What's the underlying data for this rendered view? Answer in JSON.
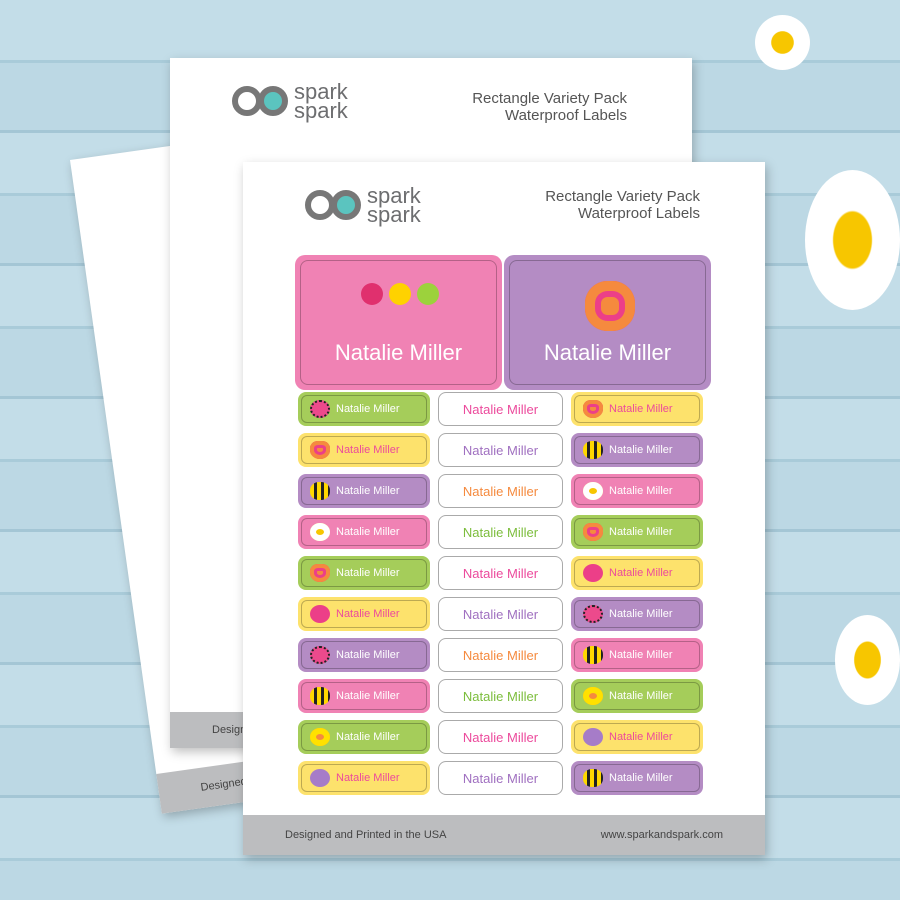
{
  "brand": {
    "line1": "spark",
    "amp": "&",
    "line2": "spark"
  },
  "sheet_title": {
    "line1": "Rectangle Variety Pack",
    "line2": "Waterproof Labels"
  },
  "footer": {
    "left": "Designed and Printed in the USA",
    "right": "www.sparkandspark.com"
  },
  "back_footer": "Designed and Printed",
  "back_footer2": "Designed",
  "name": "Natalie Miller",
  "colors": {
    "pink": "#f082b4",
    "purple": "#b48cc4",
    "green": "#a5cd5a",
    "yellow": "#fde26c",
    "text_pink": "#ec4a9c",
    "text_purple": "#a070c0",
    "text_orange": "#f58a3e",
    "text_green": "#7cbd3c"
  },
  "big_labels": [
    {
      "bg": "pink",
      "icon": "flowers"
    },
    {
      "bg": "purple",
      "icon": "butterfly"
    }
  ],
  "labels": [
    [
      {
        "bg": "green",
        "icon": "ladybug"
      },
      {
        "bg": "white",
        "text": "text_pink"
      },
      {
        "bg": "yellow",
        "icon": "butterfly"
      }
    ],
    [
      {
        "bg": "yellow",
        "icon": "butterfly"
      },
      {
        "bg": "white",
        "text": "text_purple"
      },
      {
        "bg": "purple",
        "icon": "bee"
      }
    ],
    [
      {
        "bg": "purple",
        "icon": "bee"
      },
      {
        "bg": "white",
        "text": "text_orange"
      },
      {
        "bg": "pink",
        "icon": "flower-white"
      }
    ],
    [
      {
        "bg": "pink",
        "icon": "flower-white"
      },
      {
        "bg": "white",
        "text": "text_green"
      },
      {
        "bg": "green",
        "icon": "butterfly"
      }
    ],
    [
      {
        "bg": "green",
        "icon": "butterfly"
      },
      {
        "bg": "white",
        "text": "text_pink"
      },
      {
        "bg": "yellow",
        "icon": "flower-pink"
      }
    ],
    [
      {
        "bg": "yellow",
        "icon": "flower-pink"
      },
      {
        "bg": "white",
        "text": "text_purple"
      },
      {
        "bg": "purple",
        "icon": "ladybug"
      }
    ],
    [
      {
        "bg": "purple",
        "icon": "ladybug"
      },
      {
        "bg": "white",
        "text": "text_orange"
      },
      {
        "bg": "pink",
        "icon": "bee"
      }
    ],
    [
      {
        "bg": "pink",
        "icon": "bee"
      },
      {
        "bg": "white",
        "text": "text_green"
      },
      {
        "bg": "green",
        "icon": "flower-yellow"
      }
    ],
    [
      {
        "bg": "green",
        "icon": "flower-yellow"
      },
      {
        "bg": "white",
        "text": "text_pink"
      },
      {
        "bg": "yellow",
        "icon": "flower-purple"
      }
    ],
    [
      {
        "bg": "yellow",
        "icon": "flower-purple"
      },
      {
        "bg": "white",
        "text": "text_purple"
      },
      {
        "bg": "purple",
        "icon": "bee"
      }
    ]
  ]
}
